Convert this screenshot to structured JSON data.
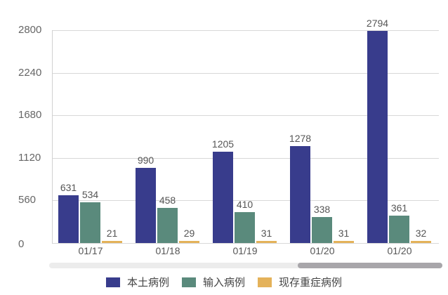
{
  "chart_data": {
    "type": "bar",
    "title": "",
    "xlabel": "",
    "ylabel": "",
    "categories": [
      "01/17",
      "01/18",
      "01/19",
      "01/20",
      "01/20"
    ],
    "series": [
      {
        "name": "本土病例",
        "color": "#383c8c",
        "values": [
          631,
          990,
          1205,
          1278,
          2794
        ]
      },
      {
        "name": "输入病例",
        "color": "#5a8a7c",
        "values": [
          534,
          458,
          410,
          338,
          361
        ]
      },
      {
        "name": "现存重症病例",
        "color": "#e4b25a",
        "values": [
          21,
          29,
          31,
          31,
          32
        ]
      }
    ],
    "yticks": [
      0,
      560,
      1120,
      1680,
      2240,
      2800
    ],
    "ylim": [
      0,
      2800
    ],
    "grid": true,
    "legend_position": "bottom",
    "data_labels": true
  },
  "yticks_text": [
    "0",
    "560",
    "1120",
    "1680",
    "2240",
    "2800"
  ],
  "scrollbar": {
    "thumb_start_pct": 63,
    "thumb_end_pct": 100
  }
}
